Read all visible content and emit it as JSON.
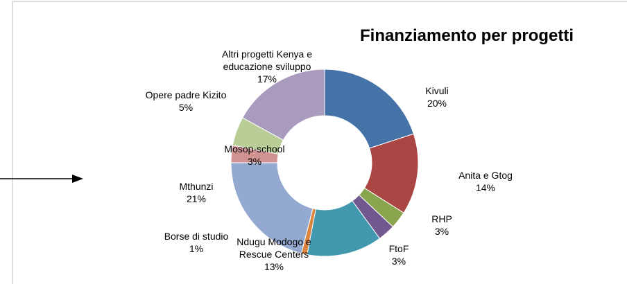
{
  "chart_data": {
    "type": "pie",
    "donut": true,
    "title": "Finanziamento per progetti",
    "categories": [
      "Kivuli",
      "Anita e Gtog",
      "RHP",
      "FtoF",
      "Ndugu Modogo e Rescue Centers",
      "Borse di studio",
      "Mthunzi",
      "Mosop-school",
      "Opere padre Kizito",
      "Altri progetti Kenya e educazione sviluppo"
    ],
    "values": [
      20,
      14,
      3,
      3,
      13,
      1,
      21,
      3,
      5,
      17
    ],
    "value_labels": [
      "20%",
      "14%",
      "3%",
      "3%",
      "13%",
      "1%",
      "21%",
      "3%",
      "5%",
      "17%"
    ],
    "colors": [
      "#4572a7",
      "#aa4643",
      "#89a54e",
      "#71588f",
      "#4198af",
      "#db843d",
      "#93a9cf",
      "#d19392",
      "#b9cd96",
      "#a99bbd"
    ]
  }
}
